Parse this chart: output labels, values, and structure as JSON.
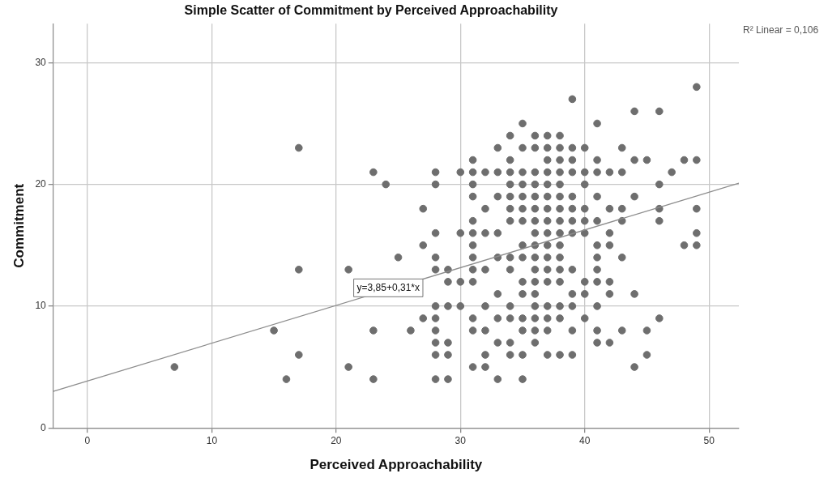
{
  "chart_data": {
    "type": "scatter",
    "title": "Simple Scatter of Commitment by Perceived Approachability",
    "xlabel": "Perceived Approachability",
    "ylabel": "Commitment",
    "xlim": [
      -2.75,
      52.4
    ],
    "ylim": [
      0,
      33.2
    ],
    "xticks": [
      0,
      10,
      20,
      30,
      40,
      50
    ],
    "yticks": [
      0,
      10,
      20,
      30
    ],
    "grid": true,
    "legend": false,
    "annotations": [
      "R² Linear = 0,106",
      {
        "text": "y=3,85+0,31*x",
        "x": 24.2,
        "y": 11.5
      }
    ],
    "series": [
      {
        "color": "#6e6e6e",
        "marker": "circle",
        "x": [
          7,
          15,
          16,
          17,
          17,
          17,
          21,
          21,
          23,
          23,
          23,
          24,
          25,
          26,
          27,
          27,
          27,
          28,
          28,
          28,
          28,
          28,
          28,
          28,
          28,
          28,
          28,
          28,
          29,
          29,
          29,
          29,
          29,
          29,
          30,
          30,
          30,
          30,
          31,
          31,
          31,
          31,
          31,
          31,
          31,
          31,
          31,
          31,
          31,
          31,
          31,
          32,
          32,
          32,
          32,
          32,
          32,
          32,
          32,
          33,
          33,
          33,
          33,
          33,
          33,
          33,
          33,
          33,
          34,
          34,
          34,
          34,
          34,
          34,
          34,
          34,
          34,
          34,
          34,
          34,
          34,
          35,
          35,
          35,
          35,
          35,
          35,
          35,
          35,
          35,
          35,
          35,
          35,
          35,
          35,
          35,
          36,
          36,
          36,
          36,
          36,
          36,
          36,
          36,
          36,
          36,
          36,
          36,
          36,
          36,
          36,
          36,
          36,
          37,
          37,
          37,
          37,
          37,
          37,
          37,
          37,
          37,
          37,
          37,
          37,
          37,
          37,
          37,
          37,
          37,
          38,
          38,
          38,
          38,
          38,
          38,
          38,
          38,
          38,
          38,
          38,
          38,
          38,
          38,
          38,
          38,
          39,
          39,
          39,
          39,
          39,
          39,
          39,
          39,
          39,
          39,
          39,
          39,
          39,
          40,
          40,
          40,
          40,
          40,
          40,
          40,
          40,
          40,
          41,
          41,
          41,
          41,
          41,
          41,
          41,
          41,
          41,
          41,
          41,
          41,
          42,
          42,
          42,
          42,
          42,
          42,
          42,
          43,
          43,
          43,
          43,
          43,
          43,
          44,
          44,
          44,
          44,
          44,
          45,
          45,
          45,
          46,
          46,
          46,
          46,
          46,
          47,
          48,
          48,
          49,
          49,
          49,
          49,
          49
        ],
        "values": [
          5,
          8,
          4,
          23,
          13,
          6,
          13,
          5,
          21,
          8,
          4,
          20,
          14,
          8,
          18,
          15,
          9,
          21,
          20,
          16,
          14,
          13,
          10,
          9,
          8,
          7,
          6,
          4,
          13,
          12,
          10,
          7,
          6,
          4,
          21,
          16,
          12,
          10,
          22,
          21,
          20,
          19,
          17,
          16,
          15,
          14,
          13,
          12,
          9,
          8,
          5,
          21,
          18,
          16,
          13,
          10,
          8,
          6,
          5,
          23,
          21,
          19,
          16,
          14,
          11,
          9,
          7,
          4,
          24,
          22,
          21,
          20,
          19,
          18,
          17,
          14,
          13,
          10,
          9,
          7,
          6,
          25,
          23,
          21,
          20,
          19,
          18,
          17,
          15,
          14,
          12,
          11,
          9,
          8,
          6,
          4,
          24,
          23,
          21,
          20,
          19,
          18,
          17,
          16,
          15,
          14,
          13,
          12,
          11,
          10,
          9,
          8,
          7,
          24,
          23,
          22,
          21,
          20,
          19,
          18,
          17,
          16,
          15,
          14,
          13,
          12,
          10,
          9,
          8,
          6,
          24,
          23,
          22,
          21,
          20,
          19,
          18,
          17,
          16,
          15,
          14,
          13,
          12,
          10,
          9,
          6,
          27,
          23,
          22,
          21,
          19,
          18,
          17,
          16,
          13,
          11,
          10,
          8,
          6,
          23,
          21,
          20,
          18,
          17,
          16,
          12,
          11,
          9,
          25,
          22,
          21,
          19,
          17,
          15,
          14,
          13,
          12,
          10,
          8,
          7,
          21,
          18,
          16,
          15,
          12,
          11,
          7,
          23,
          21,
          18,
          17,
          14,
          8,
          26,
          22,
          19,
          11,
          5,
          22,
          8,
          6,
          26,
          20,
          18,
          17,
          9,
          21,
          22,
          15,
          28,
          22,
          18,
          16,
          15
        ]
      },
      {
        "type": "line",
        "color": "#8c8c8c",
        "marker": "none",
        "x": [
          -2.75,
          52.4
        ],
        "values": [
          3.0,
          20.1
        ]
      }
    ]
  }
}
